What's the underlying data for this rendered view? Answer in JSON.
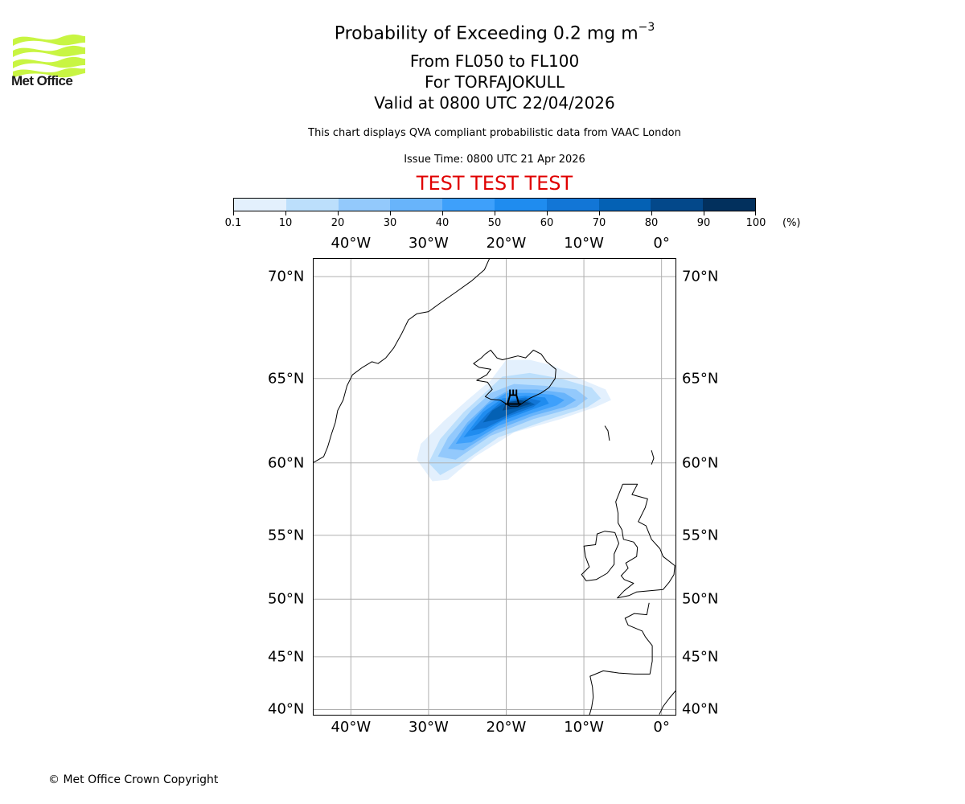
{
  "logo": {
    "name": "Met Office",
    "icon": "met-office-wave-logo",
    "color": "#c8f542"
  },
  "header": {
    "title_main": "Probability of Exceeding 0.2 mg m",
    "title_superscript": "−3",
    "flight_levels": "From FL050 to FL100",
    "volcano": "For TORFAJOKULL",
    "valid_time": "Valid at 0800 UTC 22/04/2026",
    "description": "This chart displays QVA compliant probabilistic data from VAAC London",
    "issue_time": "Issue Time: 0800 UTC 21 Apr 2026",
    "test_banner": "TEST TEST TEST",
    "test_color": "#e00000"
  },
  "footer": {
    "copyright": "© Met Office Crown Copyright"
  },
  "chart_data": {
    "type": "heatmap",
    "title": "Probability of Exceeding 0.2 mg m−3",
    "projection": "mercator",
    "extent": {
      "lon_min": -44.9,
      "lon_max": 1.9,
      "lat_min": 39.4,
      "lat_max": 70.8
    },
    "grid": true,
    "lon_ticks": [
      -40,
      -30,
      -20,
      -10,
      0
    ],
    "lon_tick_labels": [
      "40°W",
      "30°W",
      "20°W",
      "10°W",
      "0°"
    ],
    "lat_ticks": [
      70,
      65,
      60,
      55,
      50,
      45,
      40
    ],
    "lat_tick_labels": [
      "70°N",
      "65°N",
      "60°N",
      "55°N",
      "50°N",
      "45°N",
      "40°N"
    ],
    "colorbar": {
      "boundaries": [
        0.1,
        10,
        20,
        30,
        40,
        50,
        60,
        70,
        80,
        90,
        100
      ],
      "tick_labels": [
        "0.1",
        "10",
        "20",
        "30",
        "40",
        "50",
        "60",
        "70",
        "80",
        "90",
        "100"
      ],
      "unit": "(%)",
      "colors": [
        "#e3f0fd",
        "#bcdffc",
        "#93c9fc",
        "#68b4fb",
        "#3ea0fb",
        "#1f8cef",
        "#1276d6",
        "#0461b4",
        "#03488a",
        "#02305d"
      ],
      "placement": "top"
    },
    "volcano_marker": {
      "name": "TORFAJOKULL",
      "lon": -19.1,
      "lat": 63.9,
      "icon": "volcano-icon"
    },
    "plume_bands": [
      {
        "level": 0,
        "points": [
          [
            -31.5,
            60.2
          ],
          [
            -29.5,
            58.8
          ],
          [
            -27.5,
            58.9
          ],
          [
            -24,
            60.4
          ],
          [
            -19,
            61.9
          ],
          [
            -13,
            62.7
          ],
          [
            -8.5,
            63.4
          ],
          [
            -6.5,
            63.8
          ],
          [
            -7.2,
            64.4
          ],
          [
            -10,
            64.9
          ],
          [
            -14,
            65.7
          ],
          [
            -17,
            66.0
          ],
          [
            -20,
            66.0
          ],
          [
            -22,
            64.9
          ],
          [
            -25,
            63.8
          ],
          [
            -28,
            62.6
          ],
          [
            -31,
            61.2
          ]
        ]
      },
      {
        "level": 1,
        "points": [
          [
            -30,
            60.0
          ],
          [
            -28.5,
            59.2
          ],
          [
            -26,
            59.9
          ],
          [
            -21,
            61.6
          ],
          [
            -15,
            62.6
          ],
          [
            -9.5,
            63.4
          ],
          [
            -7.8,
            63.9
          ],
          [
            -9,
            64.5
          ],
          [
            -13,
            65.0
          ],
          [
            -17,
            65.3
          ],
          [
            -20.5,
            65.1
          ],
          [
            -22.5,
            64.3
          ],
          [
            -25.5,
            63.1
          ],
          [
            -28.5,
            61.5
          ]
        ]
      },
      {
        "level": 2,
        "points": [
          [
            -28.8,
            60.4
          ],
          [
            -26.5,
            60.2
          ],
          [
            -22,
            61.7
          ],
          [
            -16.5,
            62.7
          ],
          [
            -11,
            63.4
          ],
          [
            -9.5,
            63.9
          ],
          [
            -11,
            64.4
          ],
          [
            -15,
            64.6
          ],
          [
            -19,
            64.7
          ],
          [
            -22,
            64.2
          ],
          [
            -24.5,
            63.2
          ],
          [
            -27.5,
            61.6
          ]
        ]
      },
      {
        "level": 3,
        "points": [
          [
            -27.5,
            60.9
          ],
          [
            -25.5,
            60.8
          ],
          [
            -21.5,
            62.0
          ],
          [
            -16.5,
            62.9
          ],
          [
            -12.5,
            63.4
          ],
          [
            -11,
            63.8
          ],
          [
            -12.5,
            64.2
          ],
          [
            -16,
            64.4
          ],
          [
            -19.5,
            64.4
          ],
          [
            -22,
            63.8
          ],
          [
            -25,
            62.5
          ]
        ]
      },
      {
        "level": 4,
        "points": [
          [
            -26.5,
            61.2
          ],
          [
            -24.5,
            61.3
          ],
          [
            -21,
            62.3
          ],
          [
            -17,
            63.0
          ],
          [
            -13.5,
            63.5
          ],
          [
            -12.5,
            63.8
          ],
          [
            -14,
            64.1
          ],
          [
            -17,
            64.2
          ],
          [
            -20,
            64.2
          ],
          [
            -22.5,
            63.5
          ],
          [
            -25,
            62.3
          ]
        ]
      },
      {
        "level": 5,
        "points": [
          [
            -25.5,
            61.6
          ],
          [
            -23.5,
            61.8
          ],
          [
            -20.5,
            62.6
          ],
          [
            -17,
            63.2
          ],
          [
            -14.5,
            63.6
          ],
          [
            -15,
            63.95
          ],
          [
            -17.5,
            64.05
          ],
          [
            -20.5,
            63.9
          ],
          [
            -23,
            63.1
          ]
        ]
      },
      {
        "level": 6,
        "points": [
          [
            -24.5,
            62.0
          ],
          [
            -22.5,
            62.2
          ],
          [
            -19.5,
            62.9
          ],
          [
            -16.5,
            63.4
          ],
          [
            -15.5,
            63.75
          ],
          [
            -17.5,
            63.95
          ],
          [
            -20.5,
            63.75
          ],
          [
            -22.5,
            63.0
          ]
        ]
      },
      {
        "level": 7,
        "points": [
          [
            -23,
            62.5
          ],
          [
            -21,
            62.7
          ],
          [
            -18.5,
            63.2
          ],
          [
            -16.3,
            63.55
          ],
          [
            -17.5,
            63.85
          ],
          [
            -20,
            63.7
          ],
          [
            -21.8,
            63.2
          ]
        ]
      },
      {
        "level": 8,
        "points": [
          [
            -20.5,
            63.2
          ],
          [
            -18.5,
            63.35
          ],
          [
            -16.8,
            63.6
          ],
          [
            -18.2,
            63.8
          ],
          [
            -20,
            63.65
          ]
        ]
      }
    ]
  },
  "coastlines": {
    "greenland": [
      [
        -44.9,
        60.0
      ],
      [
        -44.2,
        60.2
      ],
      [
        -43.5,
        60.4
      ],
      [
        -43.0,
        61.0
      ],
      [
        -42.5,
        61.8
      ],
      [
        -42.0,
        62.5
      ],
      [
        -41.7,
        63.2
      ],
      [
        -41.0,
        63.8
      ],
      [
        -40.5,
        64.6
      ],
      [
        -39.8,
        65.2
      ],
      [
        -38.5,
        65.6
      ],
      [
        -37.3,
        65.9
      ],
      [
        -36.5,
        65.8
      ],
      [
        -35.5,
        66.1
      ],
      [
        -34.5,
        66.6
      ],
      [
        -33.5,
        67.3
      ],
      [
        -32.6,
        68.0
      ],
      [
        -31.5,
        68.3
      ],
      [
        -30.0,
        68.4
      ],
      [
        -28.5,
        68.8
      ],
      [
        -26.5,
        69.3
      ],
      [
        -24.5,
        69.8
      ],
      [
        -22.8,
        70.3
      ],
      [
        -22.0,
        70.9
      ]
    ],
    "iceland": [
      [
        -22.7,
        66.3
      ],
      [
        -22.0,
        66.5
      ],
      [
        -21.2,
        66.1
      ],
      [
        -20.5,
        66.0
      ],
      [
        -19.5,
        66.1
      ],
      [
        -18.5,
        66.2
      ],
      [
        -17.5,
        66.1
      ],
      [
        -16.5,
        66.5
      ],
      [
        -15.5,
        66.3
      ],
      [
        -14.8,
        65.9
      ],
      [
        -13.6,
        65.5
      ],
      [
        -13.7,
        65.0
      ],
      [
        -14.5,
        64.5
      ],
      [
        -15.5,
        64.2
      ],
      [
        -17.0,
        63.9
      ],
      [
        -18.5,
        63.45
      ],
      [
        -19.5,
        63.45
      ],
      [
        -20.8,
        63.8
      ],
      [
        -22.0,
        63.85
      ],
      [
        -22.7,
        64.0
      ],
      [
        -21.8,
        64.4
      ],
      [
        -22.4,
        64.8
      ],
      [
        -23.8,
        64.9
      ],
      [
        -22.5,
        65.2
      ],
      [
        -22.0,
        65.5
      ],
      [
        -23.5,
        65.6
      ],
      [
        -24.2,
        65.8
      ],
      [
        -23.2,
        66.1
      ],
      [
        -22.7,
        66.3
      ]
    ],
    "faroe": [
      [
        -7.3,
        62.3
      ],
      [
        -6.9,
        62.0
      ],
      [
        -6.7,
        61.4
      ]
    ],
    "shetland": [
      [
        -1.3,
        60.8
      ],
      [
        -1.0,
        60.3
      ],
      [
        -1.3,
        59.9
      ]
    ],
    "great_britain": [
      [
        -5.0,
        58.6
      ],
      [
        -3.1,
        58.6
      ],
      [
        -3.8,
        57.9
      ],
      [
        -1.8,
        57.6
      ],
      [
        -2.1,
        57.0
      ],
      [
        -3.0,
        56.0
      ],
      [
        -2.0,
        55.7
      ],
      [
        -1.3,
        54.7
      ],
      [
        -0.2,
        54.0
      ],
      [
        0.2,
        53.4
      ],
      [
        1.7,
        52.7
      ],
      [
        1.6,
        52.0
      ],
      [
        1.0,
        51.4
      ],
      [
        0.2,
        50.8
      ],
      [
        -1.5,
        50.7
      ],
      [
        -3.2,
        50.6
      ],
      [
        -4.2,
        50.3
      ],
      [
        -5.7,
        50.1
      ],
      [
        -4.8,
        50.7
      ],
      [
        -3.6,
        51.3
      ],
      [
        -4.8,
        51.6
      ],
      [
        -5.2,
        51.9
      ],
      [
        -4.3,
        52.5
      ],
      [
        -4.6,
        52.9
      ],
      [
        -3.2,
        53.4
      ],
      [
        -3.1,
        54.1
      ],
      [
        -3.6,
        54.5
      ],
      [
        -4.9,
        54.7
      ],
      [
        -5.1,
        55.4
      ],
      [
        -5.6,
        55.9
      ],
      [
        -5.6,
        56.6
      ],
      [
        -5.9,
        57.4
      ],
      [
        -5.3,
        58.2
      ],
      [
        -5.0,
        58.6
      ]
    ],
    "ireland": [
      [
        -6.0,
        55.2
      ],
      [
        -7.3,
        55.3
      ],
      [
        -8.3,
        55.1
      ],
      [
        -8.5,
        54.3
      ],
      [
        -10.0,
        54.2
      ],
      [
        -9.8,
        53.4
      ],
      [
        -9.3,
        52.6
      ],
      [
        -10.3,
        52.0
      ],
      [
        -9.7,
        51.5
      ],
      [
        -8.4,
        51.6
      ],
      [
        -7.0,
        52.1
      ],
      [
        -6.1,
        52.8
      ],
      [
        -6.1,
        53.6
      ],
      [
        -5.5,
        54.4
      ],
      [
        -6.0,
        55.2
      ]
    ],
    "france_spain": [
      [
        -1.6,
        49.7
      ],
      [
        -1.9,
        48.7
      ],
      [
        -3.5,
        48.8
      ],
      [
        -4.7,
        48.4
      ],
      [
        -4.3,
        47.8
      ],
      [
        -2.5,
        47.3
      ],
      [
        -2.1,
        46.8
      ],
      [
        -1.2,
        46.0
      ],
      [
        -1.2,
        44.6
      ],
      [
        -1.5,
        43.4
      ],
      [
        -3.5,
        43.4
      ],
      [
        -5.5,
        43.5
      ],
      [
        -7.5,
        43.7
      ],
      [
        -9.2,
        43.2
      ],
      [
        -8.9,
        42.2
      ],
      [
        -8.8,
        41.2
      ],
      [
        -9.0,
        40.2
      ],
      [
        -9.3,
        39.4
      ]
    ],
    "mediterranean": [
      [
        1.9,
        41.9
      ],
      [
        1.0,
        41.1
      ],
      [
        0.2,
        40.3
      ],
      [
        -0.3,
        39.5
      ]
    ]
  }
}
